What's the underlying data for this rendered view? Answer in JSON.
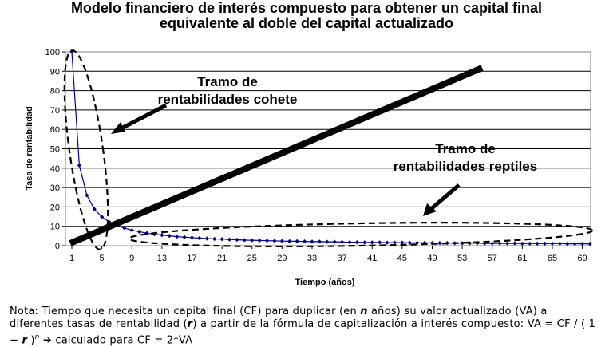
{
  "title_line1": "Modelo financiero de interés compuesto para obtener un capital final",
  "title_line2": "equivalente al doble del capital actualizado",
  "chart_data": {
    "type": "line",
    "xlabel": "Tiempo (años)",
    "ylabel": "Tasa de rentabilidad",
    "ylim": [
      0,
      100
    ],
    "yticks": [
      0,
      10,
      20,
      30,
      40,
      50,
      60,
      70,
      80,
      90,
      100
    ],
    "xlim": [
      1,
      70
    ],
    "xticks": [
      1,
      5,
      9,
      13,
      17,
      21,
      25,
      29,
      33,
      37,
      41,
      45,
      49,
      53,
      57,
      61,
      65,
      69
    ],
    "grid": "horizontal",
    "series": [
      {
        "color": "#00008b",
        "x": [
          1,
          2,
          3,
          4,
          5,
          6,
          7,
          8,
          9,
          10,
          11,
          12,
          13,
          14,
          15,
          16,
          17,
          18,
          19,
          20,
          21,
          22,
          23,
          24,
          25,
          26,
          27,
          28,
          29,
          30,
          31,
          32,
          33,
          34,
          35,
          36,
          37,
          38,
          39,
          40,
          41,
          42,
          43,
          44,
          45,
          46,
          47,
          48,
          49,
          50,
          51,
          52,
          53,
          54,
          55,
          56,
          57,
          58,
          59,
          60,
          61,
          62,
          63,
          64,
          65,
          66,
          67,
          68,
          69,
          70
        ],
        "y": [
          100,
          41.4,
          26,
          18.9,
          14.9,
          12.2,
          10.4,
          9.1,
          8,
          7.2,
          6.5,
          5.9,
          5.5,
          5.1,
          4.7,
          4.4,
          4.2,
          3.9,
          3.7,
          3.5,
          3.4,
          3.2,
          3.1,
          2.9,
          2.8,
          2.7,
          2.6,
          2.5,
          2.4,
          2.3,
          2.3,
          2.2,
          2.1,
          2.1,
          2,
          2,
          1.9,
          1.8,
          1.8,
          1.7,
          1.7,
          1.7,
          1.6,
          1.6,
          1.6,
          1.5,
          1.5,
          1.5,
          1.4,
          1.4,
          1.4,
          1.3,
          1.3,
          1.3,
          1.3,
          1.2,
          1.2,
          1.2,
          1.2,
          1.2,
          1.1,
          1.1,
          1.1,
          1.1,
          1.1,
          1.1,
          1,
          1,
          1,
          1
        ]
      }
    ],
    "annotations": [
      {
        "line1": "Tramo de",
        "line2": "rentabilidades cohete"
      },
      {
        "line1": "Tramo de",
        "line2": "rentabilidades reptiles"
      }
    ]
  },
  "note": {
    "part1": "Nota: Tiempo que necesita un capital final (CF) para duplicar (en ",
    "n_symbol": "n",
    "part2": " años) su valor actualizado (VA) a diferentes tasas de rentabilidad (",
    "r_symbol": "r",
    "part3": ") a partir de la fórmula de capitalización a interés compuesto: VA = CF / ( 1 + ",
    "r_symbol2": "r",
    "part4": " )",
    "exponent": "n",
    "arrow": "➔",
    "part5": " calculado para CF = 2*VA"
  }
}
